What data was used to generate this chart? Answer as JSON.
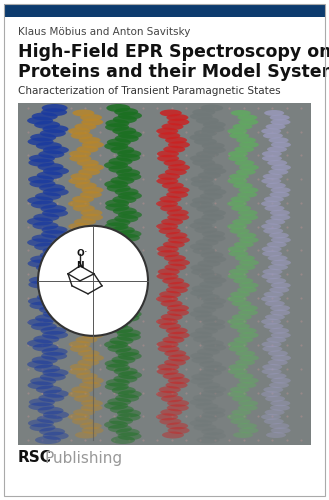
{
  "bg_color": "#ffffff",
  "top_bar_color": "#0d3b6e",
  "author_text": "Klaus Möbius and Anton Savitsky",
  "author_color": "#444444",
  "author_fontsize": 7.5,
  "title_line1": "High-Field EPR Spectroscopy on",
  "title_line2": "Proteins and their Model Systems",
  "title_color": "#111111",
  "title_fontsize": 12.5,
  "subtitle_text": "Characterization of Transient Paramagnetic States",
  "subtitle_color": "#333333",
  "subtitle_fontsize": 7.5,
  "publisher_rsc_color": "#111111",
  "publisher_publishing_color": "#999999",
  "publisher_text_rsc": "RSC",
  "publisher_text_pub": "Publishing",
  "publisher_fontsize": 11,
  "image_bg_color": "#7a8080",
  "border_color": "#aaaaaa"
}
